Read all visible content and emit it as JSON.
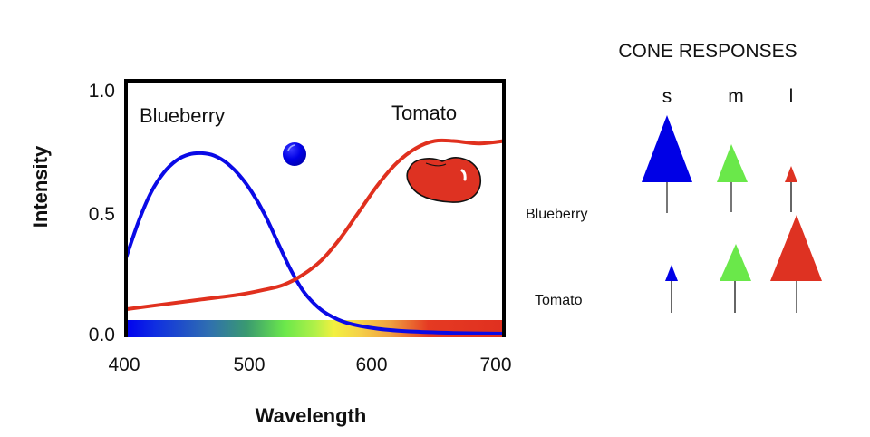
{
  "chart_data": {
    "type": "line",
    "title": "",
    "xlabel": "Wavelength",
    "ylabel": "Intensity",
    "xlim": [
      400,
      700
    ],
    "ylim": [
      0.0,
      1.0
    ],
    "x_ticks": [
      "400",
      "500",
      "600",
      "700"
    ],
    "y_ticks": [
      "0.0",
      "0.5",
      "1.0"
    ],
    "grid": false,
    "legend": "inline labels",
    "series": [
      {
        "name": "Blueberry",
        "color": "#0a0ae6",
        "points": [
          [
            400,
            0.31
          ],
          [
            410,
            0.46
          ],
          [
            420,
            0.58
          ],
          [
            430,
            0.66
          ],
          [
            440,
            0.71
          ],
          [
            450,
            0.735
          ],
          [
            460,
            0.74
          ],
          [
            470,
            0.73
          ],
          [
            480,
            0.7
          ],
          [
            490,
            0.65
          ],
          [
            500,
            0.58
          ],
          [
            510,
            0.49
          ],
          [
            520,
            0.38
          ],
          [
            530,
            0.27
          ],
          [
            540,
            0.18
          ],
          [
            550,
            0.12
          ],
          [
            560,
            0.08
          ],
          [
            575,
            0.045
          ],
          [
            600,
            0.02
          ],
          [
            630,
            0.008
          ],
          [
            660,
            0.003
          ],
          [
            700,
            0.0
          ]
        ]
      },
      {
        "name": "Tomato",
        "color": "#e0301e",
        "points": [
          [
            400,
            0.1
          ],
          [
            430,
            0.12
          ],
          [
            460,
            0.14
          ],
          [
            490,
            0.16
          ],
          [
            510,
            0.18
          ],
          [
            525,
            0.2
          ],
          [
            540,
            0.24
          ],
          [
            555,
            0.3
          ],
          [
            570,
            0.39
          ],
          [
            585,
            0.5
          ],
          [
            600,
            0.61
          ],
          [
            615,
            0.7
          ],
          [
            630,
            0.76
          ],
          [
            645,
            0.79
          ],
          [
            660,
            0.79
          ],
          [
            680,
            0.78
          ],
          [
            700,
            0.79
          ]
        ]
      }
    ],
    "spectrum_bar": {
      "stops": [
        {
          "offset": "0%",
          "color": "#0000f0"
        },
        {
          "offset": "8%",
          "color": "#1030e0"
        },
        {
          "offset": "22%",
          "color": "#2f6fb0"
        },
        {
          "offset": "32%",
          "color": "#3a9a70"
        },
        {
          "offset": "42%",
          "color": "#6be84b"
        },
        {
          "offset": "50%",
          "color": "#b0f048"
        },
        {
          "offset": "55%",
          "color": "#f2f040"
        },
        {
          "offset": "62%",
          "color": "#f5d048"
        },
        {
          "offset": "70%",
          "color": "#f0a040"
        },
        {
          "offset": "80%",
          "color": "#e53a22"
        },
        {
          "offset": "100%",
          "color": "#e03020"
        }
      ]
    },
    "cone_responses": {
      "title": "CONE RESPONSES",
      "columns": [
        "s",
        "m",
        "l"
      ],
      "rows": [
        {
          "stimulus": "Blueberry",
          "s": 1.0,
          "m": 0.55,
          "l": 0.22
        },
        {
          "stimulus": "Tomato",
          "s": 0.24,
          "m": 0.56,
          "l": 1.0
        }
      ]
    }
  },
  "labels": {
    "blueberry": "Blueberry",
    "tomato": "Tomato",
    "xlabel": "Wavelength",
    "ylabel": "Intensity",
    "y_tick_0": "0.0",
    "y_tick_1": "0.5",
    "y_tick_2": "1.0",
    "x_tick_0": "400",
    "x_tick_1": "500",
    "x_tick_2": "600",
    "x_tick_3": "700",
    "cone_title": "CONE RESPONSES",
    "col_s": "s",
    "col_m": "m",
    "col_l": "l",
    "row_blueberry": "Blueberry",
    "row_tomato": "Tomato"
  },
  "colors": {
    "frame": "#000000",
    "blue": "#0000e6",
    "green": "#6ae84a",
    "red": "#de3222",
    "stem": "#777777"
  }
}
